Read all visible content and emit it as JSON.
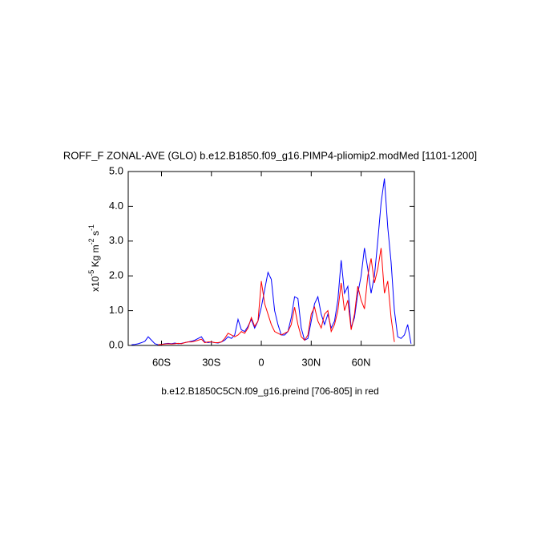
{
  "chart_data": {
    "type": "line",
    "title": "ROFF_F ZONAL-AVE (GLO) b.e12.B1850.f09_g16.PIMP4-pliomip2.modMed [1101-1200]",
    "subtitle": "b.e12.B1850C5CN.f09_g16.preind [706-805] in red",
    "ylabel": [
      "x10",
      "-5",
      " Kg m",
      "-2",
      " s",
      "-1"
    ],
    "x": [
      -78,
      -76,
      -74,
      -72,
      -70,
      -68,
      -66,
      -64,
      -62,
      -60,
      -58,
      -56,
      -54,
      -52,
      -50,
      -48,
      -46,
      -44,
      -42,
      -40,
      -38,
      -36,
      -34,
      -32,
      -30,
      -28,
      -26,
      -24,
      -22,
      -20,
      -18,
      -16,
      -14,
      -12,
      -10,
      -8,
      -6,
      -4,
      -2,
      0,
      2,
      4,
      6,
      8,
      10,
      12,
      14,
      16,
      18,
      20,
      22,
      24,
      26,
      28,
      30,
      32,
      34,
      36,
      38,
      40,
      42,
      44,
      46,
      48,
      50,
      52,
      54,
      56,
      58,
      60,
      62,
      64,
      66,
      68,
      70,
      72,
      74,
      76,
      78,
      80,
      82,
      84,
      86,
      88,
      90
    ],
    "series": [
      {
        "color": "#0000ff",
        "values": [
          0.02,
          0.03,
          0.05,
          0.08,
          0.12,
          0.25,
          0.15,
          0.05,
          0.02,
          0.03,
          0.05,
          0.06,
          0.05,
          0.07,
          0.05,
          0.06,
          0.08,
          0.1,
          0.12,
          0.15,
          0.2,
          0.25,
          0.1,
          0.08,
          0.1,
          0.08,
          0.07,
          0.1,
          0.15,
          0.25,
          0.2,
          0.3,
          0.75,
          0.45,
          0.4,
          0.55,
          0.75,
          0.5,
          0.7,
          1.1,
          1.6,
          2.1,
          1.9,
          1.0,
          0.6,
          0.3,
          0.3,
          0.4,
          0.8,
          1.4,
          1.35,
          0.5,
          0.15,
          0.2,
          0.7,
          1.2,
          1.4,
          0.9,
          0.6,
          0.9,
          0.5,
          0.7,
          1.3,
          2.45,
          1.5,
          1.7,
          0.5,
          0.8,
          1.5,
          2.0,
          2.8,
          2.2,
          1.5,
          2.0,
          3.0,
          4.1,
          4.8,
          3.4,
          2.4,
          1.0,
          0.25,
          0.2,
          0.3,
          0.6,
          0.05
        ]
      },
      {
        "color": "#ff0000",
        "values": [
          null,
          null,
          null,
          null,
          null,
          null,
          null,
          null,
          0.02,
          0.03,
          0.04,
          0.05,
          0.04,
          0.05,
          0.06,
          0.05,
          0.08,
          0.1,
          0.1,
          0.12,
          0.15,
          0.18,
          0.08,
          0.1,
          0.1,
          0.08,
          0.08,
          0.1,
          0.2,
          0.35,
          0.3,
          0.25,
          0.3,
          0.4,
          0.35,
          0.5,
          0.8,
          0.55,
          0.7,
          1.85,
          1.2,
          0.9,
          0.6,
          0.4,
          0.35,
          0.3,
          0.35,
          0.4,
          0.6,
          1.1,
          0.6,
          0.25,
          0.15,
          0.3,
          0.9,
          1.1,
          0.7,
          0.5,
          0.9,
          1.0,
          0.4,
          0.6,
          1.0,
          1.8,
          1.0,
          1.3,
          0.45,
          0.9,
          1.7,
          1.3,
          1.05,
          2.0,
          2.5,
          1.8,
          2.2,
          2.8,
          1.5,
          1.85,
          0.8,
          0.1,
          null,
          null,
          null,
          null,
          null
        ]
      }
    ],
    "xlim": [
      -80,
      92
    ],
    "xticks": [
      {
        "value": -60,
        "label": "60S"
      },
      {
        "value": -30,
        "label": "30S"
      },
      0,
      {
        "value": 30,
        "label": "30N"
      },
      {
        "value": 60,
        "label": "60N"
      }
    ],
    "ylim": [
      0,
      5
    ],
    "yticks": [
      {
        "value": 0,
        "label": "0.0"
      },
      {
        "value": 1,
        "label": "1.0"
      },
      {
        "value": 2,
        "label": "2.0"
      },
      {
        "value": 3,
        "label": "3.0"
      },
      {
        "value": 4,
        "label": "4.0"
      },
      {
        "value": 5,
        "label": "5.0"
      }
    ]
  }
}
